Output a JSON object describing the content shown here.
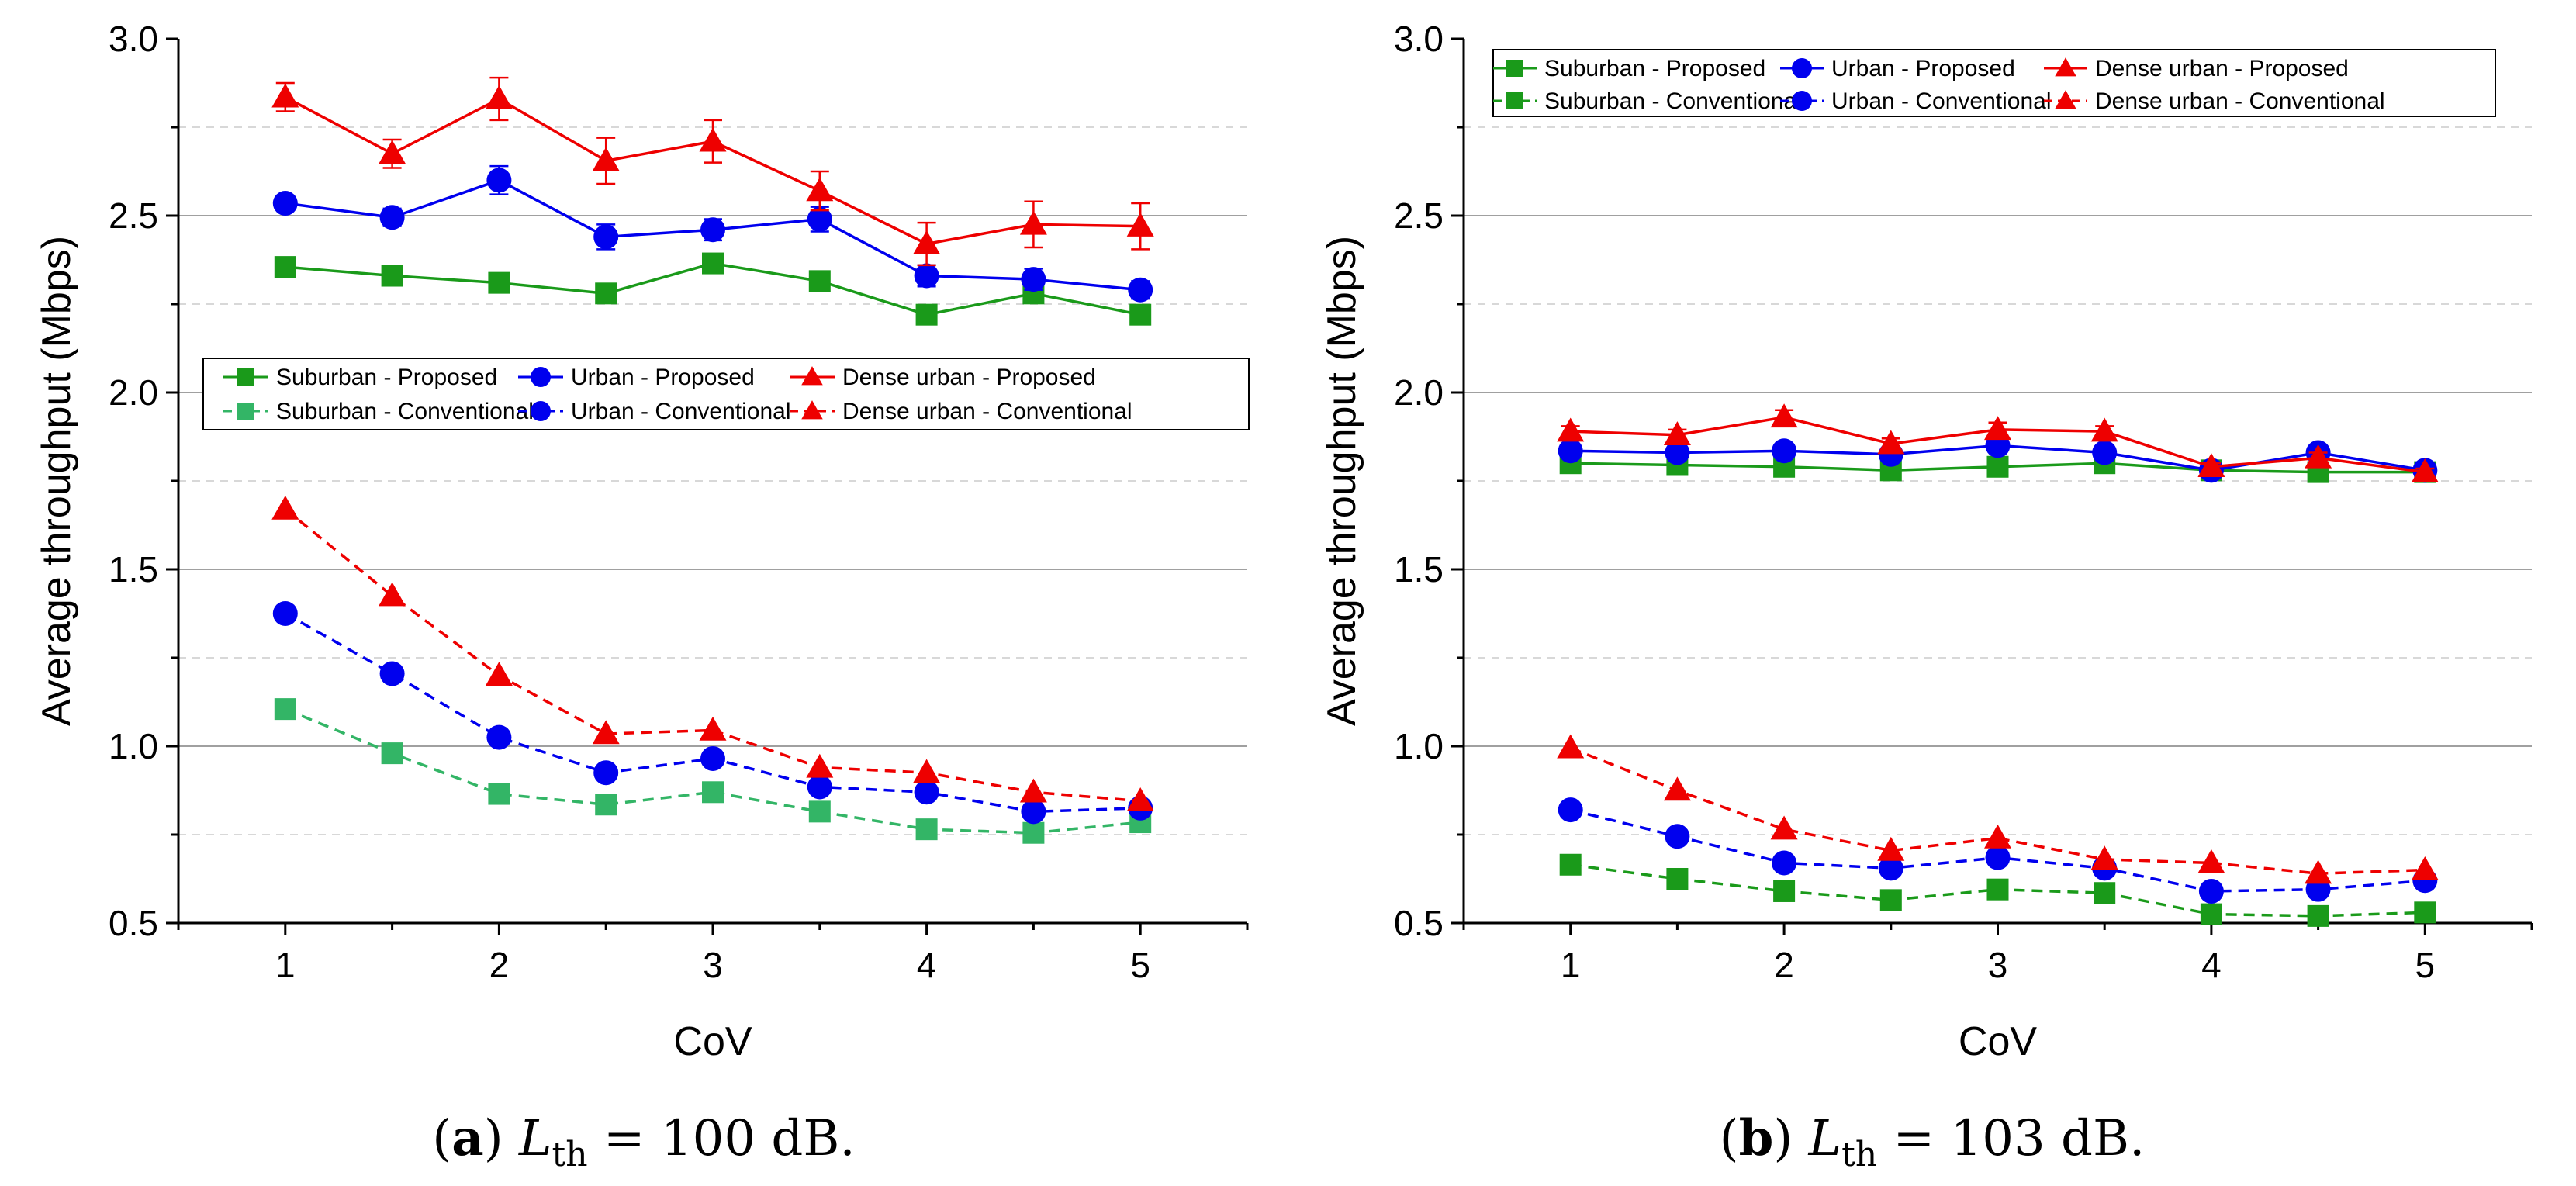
{
  "chart_data": [
    {
      "type": "line",
      "panel_label": "a",
      "caption_var": "L",
      "caption_sub": "th",
      "caption_eq": "= 100 dB.",
      "xlabel": "CoV",
      "ylabel": "Average throughput (Mbps)",
      "xlim": [
        0.5,
        5.5
      ],
      "ylim": [
        0.5,
        3.0
      ],
      "xticks": [
        1,
        2,
        3,
        4,
        5
      ],
      "yticks": [
        0.5,
        1.0,
        1.5,
        2.0,
        2.5,
        3.0
      ],
      "ytick_labels": [
        "0.5",
        "1.0",
        "1.5",
        "2.0",
        "2.5",
        "3.0"
      ],
      "grid": "horizontal",
      "legend_position": "middle",
      "x": [
        1,
        1.5,
        2,
        2.5,
        3,
        3.5,
        4,
        4.5,
        5
      ],
      "series": [
        {
          "name": "Suburban - Proposed",
          "color": "#1a9a1a",
          "marker": "square",
          "dash": "solid",
          "values": [
            2.355,
            2.33,
            2.31,
            2.28,
            2.365,
            2.315,
            2.22,
            2.28,
            2.22
          ],
          "errors": [
            0,
            0,
            0,
            0,
            0,
            0,
            0,
            0,
            0
          ]
        },
        {
          "name": "Urban - Proposed",
          "color": "#0000ee",
          "marker": "circle",
          "dash": "solid",
          "values": [
            2.535,
            2.495,
            2.6,
            2.44,
            2.46,
            2.49,
            2.33,
            2.32,
            2.29
          ],
          "errors": [
            0,
            0.025,
            0.04,
            0.035,
            0.03,
            0.035,
            0.03,
            0.03,
            0.025
          ]
        },
        {
          "name": "Dense urban - Proposed",
          "color": "#ee0000",
          "marker": "triangle",
          "dash": "solid",
          "values": [
            2.835,
            2.675,
            2.83,
            2.655,
            2.71,
            2.57,
            2.42,
            2.475,
            2.47
          ],
          "errors": [
            0.04,
            0.04,
            0.06,
            0.065,
            0.06,
            0.055,
            0.06,
            0.065,
            0.065
          ]
        },
        {
          "name": "Suburban - Conventional",
          "color": "#33b566",
          "marker": "square",
          "dash": "dashed",
          "values": [
            1.105,
            0.98,
            0.865,
            0.835,
            0.87,
            0.815,
            0.765,
            0.755,
            0.785
          ],
          "errors": [
            0,
            0,
            0,
            0,
            0,
            0,
            0,
            0,
            0
          ]
        },
        {
          "name": "Urban - Conventional",
          "color": "#0000ee",
          "marker": "circle",
          "dash": "dashed",
          "values": [
            1.375,
            1.205,
            1.025,
            0.925,
            0.965,
            0.885,
            0.87,
            0.815,
            0.825
          ],
          "errors": [
            0,
            0,
            0,
            0,
            0,
            0,
            0,
            0,
            0
          ]
        },
        {
          "name": "Dense urban - Conventional",
          "color": "#ee0000",
          "marker": "triangle",
          "dash": "dashed",
          "values": [
            1.67,
            1.425,
            1.2,
            1.035,
            1.045,
            0.94,
            0.925,
            0.87,
            0.845
          ],
          "errors": [
            0,
            0,
            0,
            0,
            0,
            0,
            0,
            0,
            0
          ]
        }
      ]
    },
    {
      "type": "line",
      "panel_label": "b",
      "caption_var": "L",
      "caption_sub": "th",
      "caption_eq": "= 103 dB.",
      "xlabel": "CoV",
      "ylabel": "Average throughput (Mbps)",
      "xlim": [
        0.5,
        5.5
      ],
      "ylim": [
        0.5,
        3.0
      ],
      "xticks": [
        1,
        2,
        3,
        4,
        5
      ],
      "yticks": [
        0.5,
        1.0,
        1.5,
        2.0,
        2.5,
        3.0
      ],
      "ytick_labels": [
        "0.5",
        "1.0",
        "1.5",
        "2.0",
        "2.5",
        "3.0"
      ],
      "grid": "horizontal",
      "legend_position": "top-left",
      "x": [
        1,
        1.5,
        2,
        2.5,
        3,
        3.5,
        4,
        4.5,
        5
      ],
      "series": [
        {
          "name": "Suburban - Proposed",
          "color": "#1a9a1a",
          "marker": "square",
          "dash": "solid",
          "values": [
            1.8,
            1.795,
            1.79,
            1.78,
            1.79,
            1.8,
            1.78,
            1.775,
            1.775
          ],
          "errors": [
            0,
            0,
            0,
            0,
            0,
            0,
            0,
            0,
            0
          ]
        },
        {
          "name": "Urban - Proposed",
          "color": "#0000ee",
          "marker": "circle",
          "dash": "solid",
          "values": [
            1.835,
            1.83,
            1.835,
            1.825,
            1.85,
            1.83,
            1.78,
            1.83,
            1.78
          ],
          "errors": [
            0,
            0,
            0,
            0,
            0,
            0,
            0,
            0,
            0
          ]
        },
        {
          "name": "Dense urban - Proposed",
          "color": "#ee0000",
          "marker": "triangle",
          "dash": "solid",
          "values": [
            1.89,
            1.88,
            1.93,
            1.855,
            1.895,
            1.89,
            1.79,
            1.815,
            1.775
          ],
          "errors": [
            0.015,
            0.015,
            0.02,
            0.015,
            0.02,
            0.015,
            0.01,
            0.015,
            0.01
          ]
        },
        {
          "name": "Suburban - Conventional",
          "color": "#1a9a1a",
          "marker": "square",
          "dash": "dashed",
          "values": [
            0.665,
            0.625,
            0.59,
            0.565,
            0.595,
            0.585,
            0.525,
            0.52,
            0.53
          ],
          "errors": [
            0,
            0,
            0,
            0,
            0,
            0,
            0,
            0,
            0
          ]
        },
        {
          "name": "Urban - Conventional",
          "color": "#0000ee",
          "marker": "circle",
          "dash": "dashed",
          "values": [
            0.82,
            0.745,
            0.67,
            0.655,
            0.685,
            0.655,
            0.59,
            0.595,
            0.62
          ],
          "errors": [
            0,
            0,
            0,
            0,
            0,
            0,
            0,
            0,
            0
          ]
        },
        {
          "name": "Dense urban - Conventional",
          "color": "#ee0000",
          "marker": "triangle",
          "dash": "dashed",
          "values": [
            0.995,
            0.875,
            0.765,
            0.705,
            0.74,
            0.68,
            0.67,
            0.64,
            0.65
          ],
          "errors": [
            0,
            0,
            0,
            0,
            0,
            0,
            0,
            0,
            0
          ]
        }
      ]
    }
  ]
}
